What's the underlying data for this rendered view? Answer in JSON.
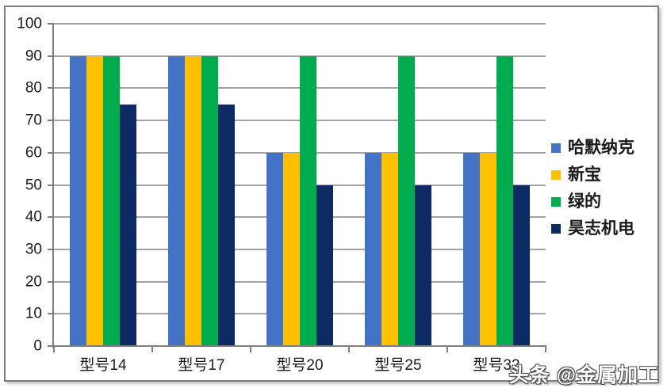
{
  "watermark": "头条 @金属加工",
  "colors": {
    "series_blue": "#4472C4",
    "series_gold": "#FFC000",
    "series_green": "#00AC4E",
    "series_navy": "#0D2A63",
    "gridline": "#A3A3A3",
    "axis": "#7F7F7F",
    "frame_border": "#7F7F7F"
  },
  "chart_data": {
    "type": "bar",
    "title": "",
    "xlabel": "",
    "ylabel": "",
    "categories": [
      "型号14",
      "型号17",
      "型号20",
      "型号25",
      "型号32"
    ],
    "series": [
      {
        "name": "哈默纳克",
        "color": "#4472C4",
        "values": [
          90,
          90,
          60,
          60,
          60
        ]
      },
      {
        "name": "新宝",
        "color": "#FFC000",
        "values": [
          90,
          90,
          60,
          60,
          60
        ]
      },
      {
        "name": "绿的",
        "color": "#00AC4E",
        "values": [
          90,
          90,
          90,
          90,
          90
        ]
      },
      {
        "name": "昊志机电",
        "color": "#0D2A63",
        "values": [
          75,
          75,
          50,
          50,
          50
        ]
      }
    ],
    "ylim": [
      0,
      100
    ],
    "yticks": [
      0,
      10,
      20,
      30,
      40,
      50,
      60,
      70,
      80,
      90,
      100
    ],
    "grid": true,
    "legend_position": "right"
  }
}
